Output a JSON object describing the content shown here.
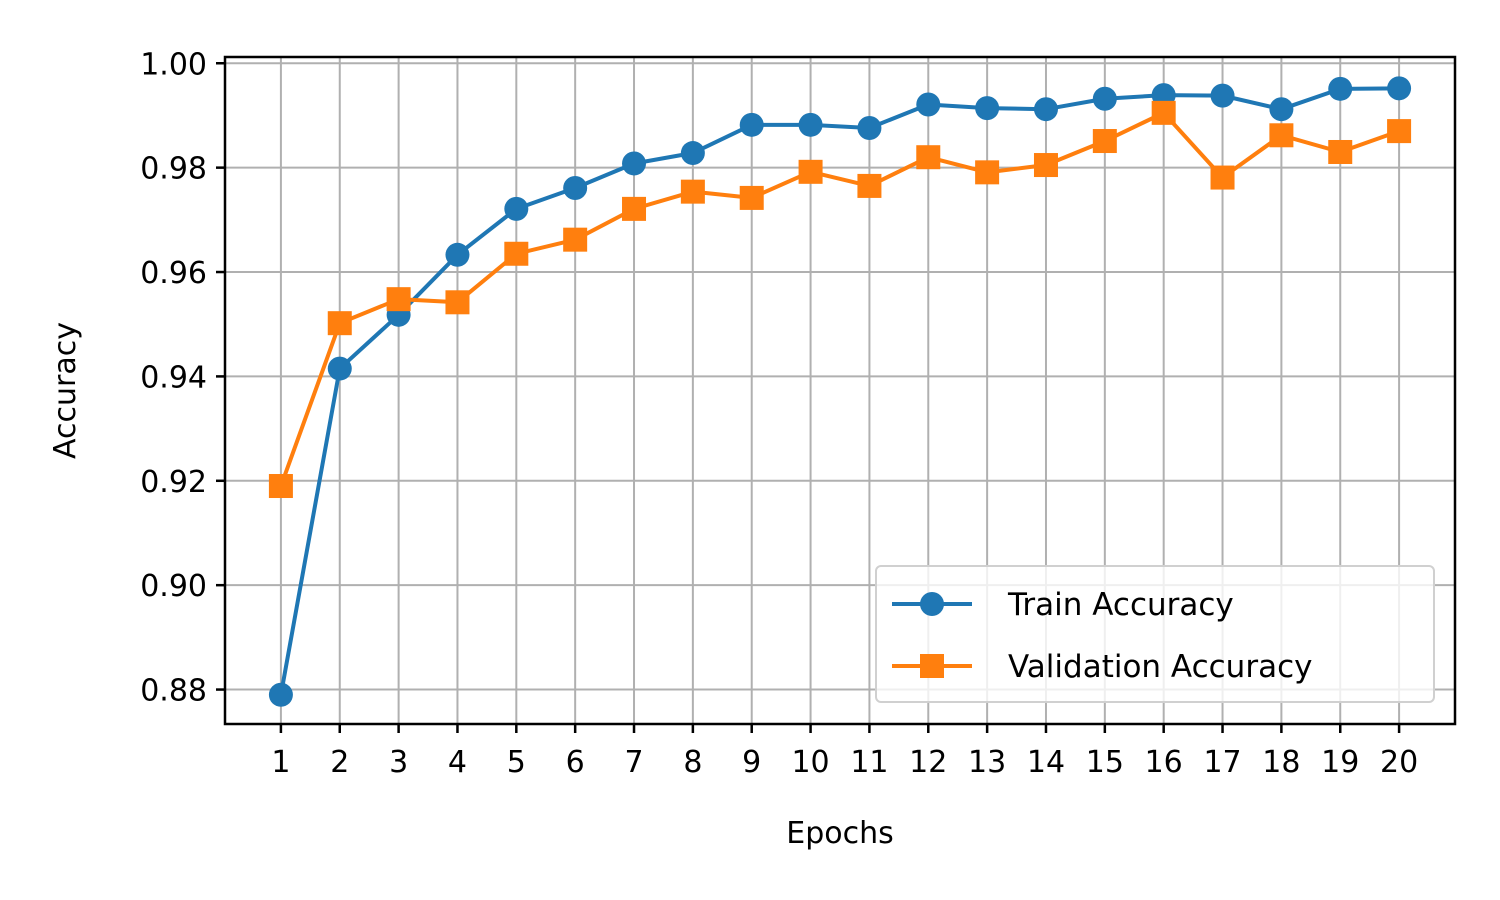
{
  "chart_data": {
    "type": "line",
    "title": "",
    "xlabel": "Epochs",
    "ylabel": "Accuracy",
    "x": [
      1,
      2,
      3,
      4,
      5,
      6,
      7,
      8,
      9,
      10,
      11,
      12,
      13,
      14,
      15,
      16,
      17,
      18,
      19,
      20
    ],
    "x_tick_labels": [
      "1",
      "2",
      "3",
      "4",
      "5",
      "6",
      "7",
      "8",
      "9",
      "10",
      "11",
      "12",
      "13",
      "14",
      "15",
      "16",
      "17",
      "18",
      "19",
      "20"
    ],
    "xlim": [
      0.05,
      20.95
    ],
    "ylim": [
      0.8734,
      1.0012
    ],
    "y_ticks": [
      0.88,
      0.9,
      0.92,
      0.94,
      0.96,
      0.98,
      1.0
    ],
    "y_tick_labels": [
      "0.88",
      "0.90",
      "0.92",
      "0.94",
      "0.96",
      "0.98",
      "1.00"
    ],
    "grid": true,
    "legend_position": "lower-right",
    "series": [
      {
        "name": "Train Accuracy",
        "color": "#1f77b4",
        "marker": "circle",
        "values": [
          0.879,
          0.9415,
          0.9518,
          0.9633,
          0.9721,
          0.9761,
          0.9808,
          0.9828,
          0.9882,
          0.9882,
          0.9876,
          0.9921,
          0.9914,
          0.9912,
          0.9932,
          0.9939,
          0.9938,
          0.9912,
          0.9951,
          0.9952
        ]
      },
      {
        "name": "Validation Accuracy",
        "color": "#ff7f0e",
        "marker": "square",
        "values": [
          0.919,
          0.9502,
          0.9548,
          0.9542,
          0.9635,
          0.9662,
          0.9721,
          0.9754,
          0.9742,
          0.9792,
          0.9765,
          0.982,
          0.9791,
          0.9805,
          0.9851,
          0.9905,
          0.9781,
          0.9862,
          0.983,
          0.987
        ]
      }
    ]
  }
}
